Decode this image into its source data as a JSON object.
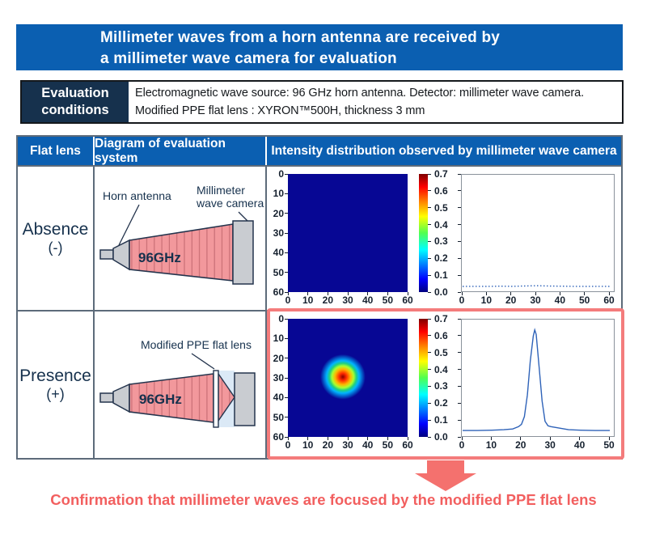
{
  "banner": {
    "line1": "Millimeter waves from a horn antenna are received by",
    "line2": "a millimeter wave camera for evaluation"
  },
  "conditions": {
    "label_line1": "Evaluation",
    "label_line2": "conditions",
    "text_line1": "Electromagnetic wave source: 96 GHz horn antenna. Detector: millimeter wave camera.",
    "text_line2": "Modified PPE flat lens : XYRON™500H, thickness 3 mm"
  },
  "table": {
    "headers": [
      "Flat lens",
      "Diagram of evaluation system",
      "Intensity distribution observed by millimeter wave camera"
    ]
  },
  "rows": [
    {
      "label_line1": "Absence",
      "label_line2": "(-)",
      "diagram": {
        "freq": "96GHz",
        "callout_horn": "Horn antenna",
        "callout_camera_line1": "Millimeter",
        "callout_camera_line2": "wave camera"
      }
    },
    {
      "label_line1": "Presence",
      "label_line2": "(+)",
      "diagram": {
        "freq": "96GHz",
        "callout_lens": "Modified PPE flat lens"
      }
    }
  ],
  "chart_data": [
    {
      "id": "absence-heatmap",
      "type": "heatmap",
      "x_ticks": [
        0,
        10,
        20,
        30,
        40,
        50,
        60
      ],
      "y_ticks": [
        0,
        10,
        20,
        30,
        40,
        50,
        60
      ],
      "x_range": [
        0,
        61
      ],
      "y_range": [
        0,
        61
      ],
      "uniform_value": 0.0,
      "hotspot": null,
      "colormap": "jet",
      "value_range": [
        0.0,
        0.7
      ],
      "colorbar_ticks": [
        "0.7",
        "0.6",
        "0.5",
        "0.4",
        "0.3",
        "0.2",
        "0.1",
        "0.0"
      ]
    },
    {
      "id": "absence-profile",
      "type": "line",
      "x_ticks": [
        0,
        10,
        20,
        30,
        40,
        50,
        60
      ],
      "x_range": [
        0,
        60
      ],
      "y_range": [
        0,
        0.7
      ],
      "line_style": "dotted",
      "points": [
        [
          0,
          0.005
        ],
        [
          5,
          0.006
        ],
        [
          10,
          0.005
        ],
        [
          15,
          0.007
        ],
        [
          20,
          0.006
        ],
        [
          25,
          0.008
        ],
        [
          30,
          0.01
        ],
        [
          35,
          0.008
        ],
        [
          40,
          0.007
        ],
        [
          45,
          0.006
        ],
        [
          50,
          0.005
        ],
        [
          55,
          0.006
        ],
        [
          60,
          0.005
        ]
      ]
    },
    {
      "id": "presence-heatmap",
      "type": "heatmap",
      "x_ticks": [
        0,
        10,
        20,
        30,
        40,
        50,
        60
      ],
      "y_ticks": [
        0,
        10,
        20,
        30,
        40,
        50,
        60
      ],
      "x_range": [
        0,
        61
      ],
      "y_range": [
        0,
        61
      ],
      "uniform_value": 0.0,
      "hotspot": {
        "x": 28,
        "y": 30,
        "peak_value": 0.7,
        "radius": 5
      },
      "colormap": "jet",
      "value_range": [
        0.0,
        0.7
      ],
      "colorbar_ticks": [
        "0.7",
        "0.6",
        "0.5",
        "0.4",
        "0.3",
        "0.2",
        "0.1",
        "0.0"
      ]
    },
    {
      "id": "presence-profile",
      "type": "line",
      "x_ticks": [
        0,
        10,
        20,
        30,
        40,
        50
      ],
      "x_range": [
        0,
        50
      ],
      "y_range": [
        0,
        0.7
      ],
      "line_style": "solid",
      "points": [
        [
          0,
          0.01
        ],
        [
          5,
          0.01
        ],
        [
          10,
          0.012
        ],
        [
          14,
          0.015
        ],
        [
          17,
          0.02
        ],
        [
          19,
          0.035
        ],
        [
          20,
          0.05
        ],
        [
          21,
          0.1
        ],
        [
          22,
          0.24
        ],
        [
          23,
          0.46
        ],
        [
          24,
          0.62
        ],
        [
          24.5,
          0.66
        ],
        [
          25,
          0.63
        ],
        [
          26,
          0.42
        ],
        [
          27,
          0.2
        ],
        [
          28,
          0.07
        ],
        [
          29,
          0.04
        ],
        [
          30,
          0.035
        ],
        [
          32,
          0.028
        ],
        [
          34,
          0.022
        ],
        [
          36,
          0.015
        ],
        [
          40,
          0.012
        ],
        [
          45,
          0.01
        ],
        [
          50,
          0.01
        ]
      ]
    }
  ],
  "footer": {
    "confirmation": "Confirmation that millimeter waves are focused by the modified PPE flat lens"
  },
  "colors": {
    "banner_bg": "#0b5fb1",
    "navy_text": "#16314d",
    "table_border": "#5d6b7a",
    "highlight_border": "#f47c7c",
    "arrow_coral": "#f4716e",
    "footer_text": "#f25f5f",
    "heatmap_low": "#070794",
    "profile_line": "#2e62b8",
    "beam_pink": "#f2989c"
  }
}
